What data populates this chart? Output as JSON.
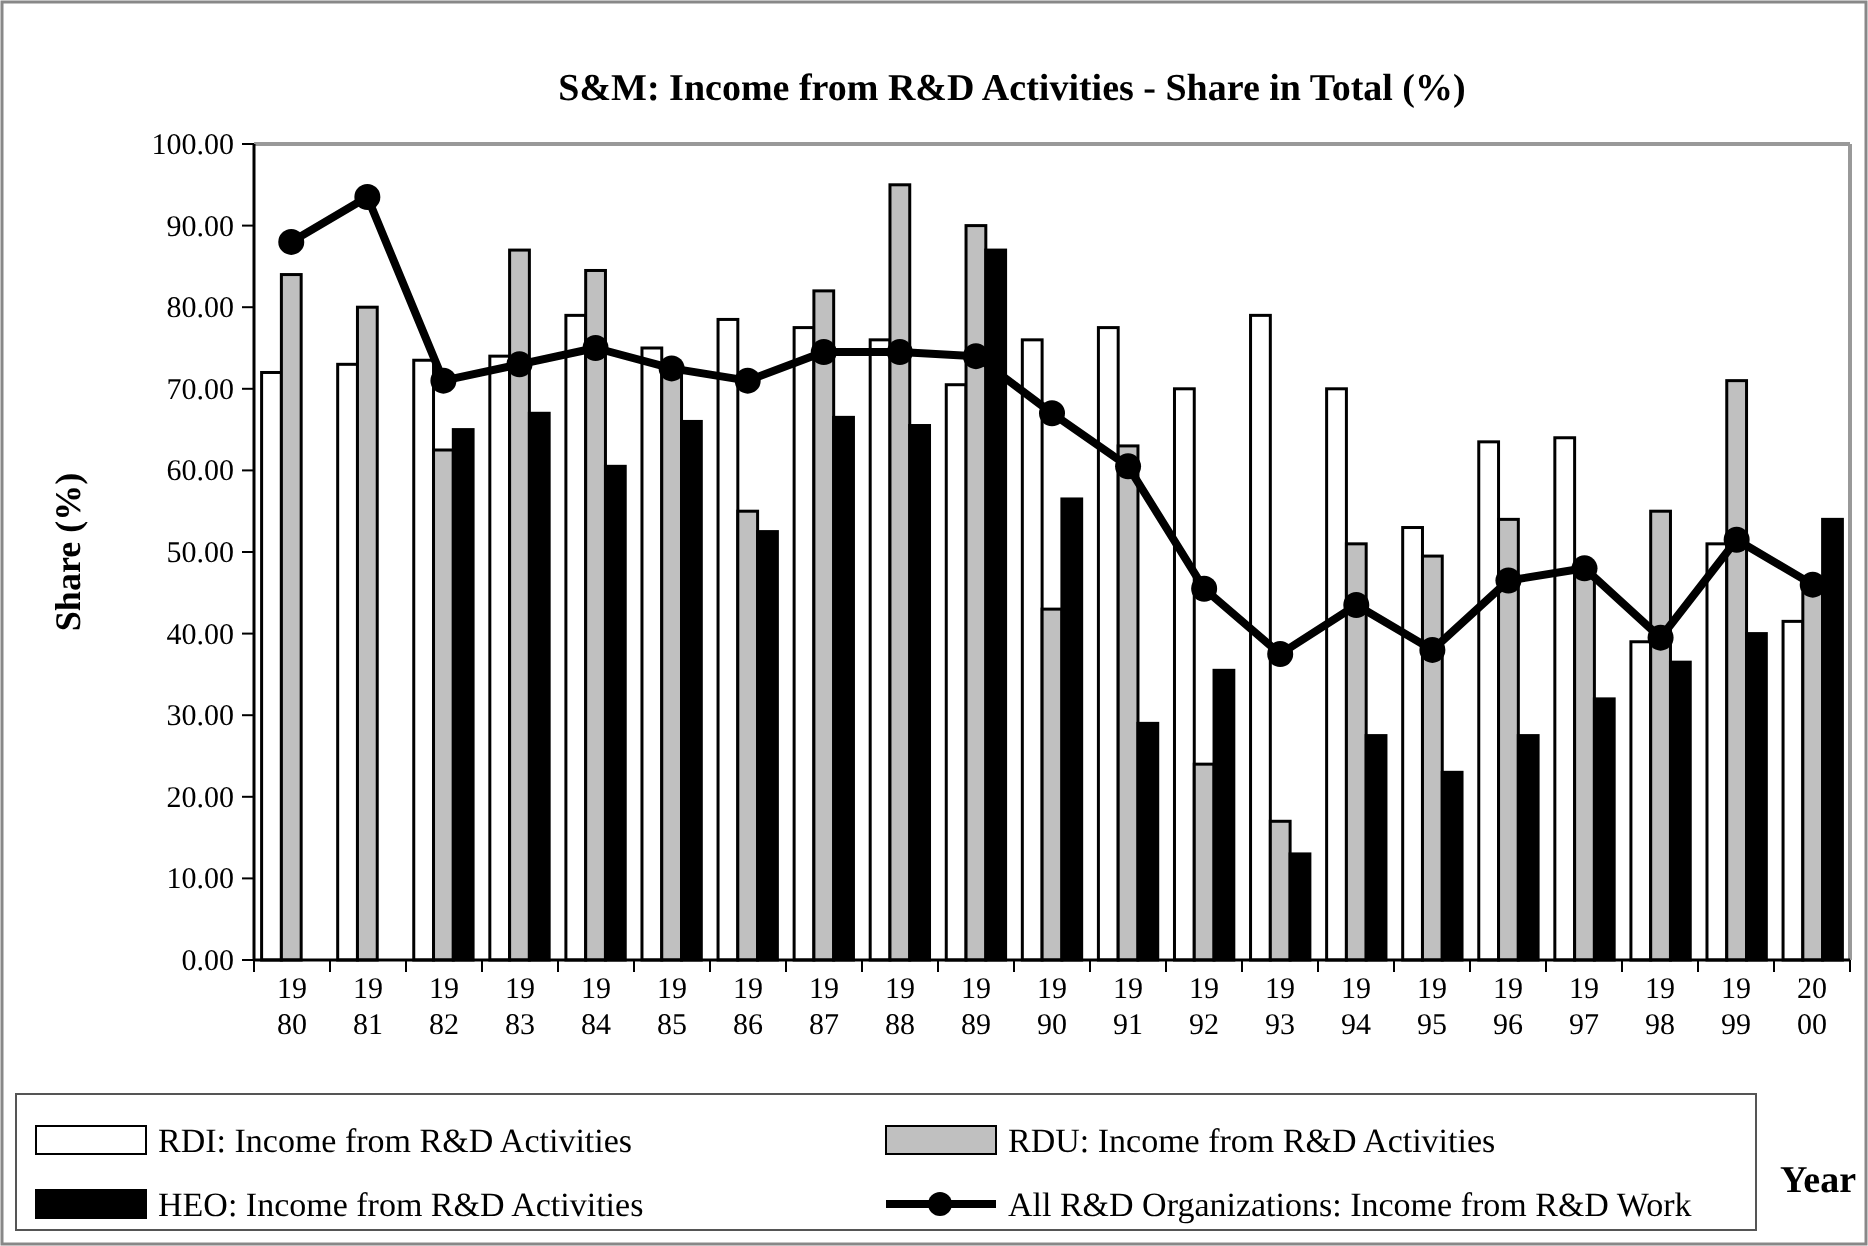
{
  "chart_data": {
    "type": "bar",
    "title": "S&M: Income from R&D Activities - Share in Total (%)",
    "xlabel": "Year",
    "ylabel": "Share (%)",
    "categories": [
      "1980",
      "1981",
      "1982",
      "1983",
      "1984",
      "1985",
      "1986",
      "1987",
      "1988",
      "1989",
      "1990",
      "1991",
      "1992",
      "1993",
      "1994",
      "1995",
      "1996",
      "1997",
      "1998",
      "1999",
      "2000"
    ],
    "series": [
      {
        "name": "RDI: Income from R&D Activities",
        "color": "#ffffff",
        "values": [
          72,
          73,
          73.5,
          74,
          79,
          75,
          78.5,
          77.5,
          76,
          70.5,
          76,
          77.5,
          70,
          79,
          70,
          53,
          63.5,
          64,
          39,
          51,
          41.5
        ]
      },
      {
        "name": "RDU: Income from R&D Activities",
        "color": "#c0c0c0",
        "values": [
          84,
          80,
          62.5,
          87,
          84.5,
          72.5,
          55,
          82,
          95,
          90,
          43,
          63,
          24,
          17,
          51,
          49.5,
          54,
          47,
          55,
          71,
          45
        ]
      },
      {
        "name": "HEO: Income from R&D Activities",
        "color": "#000000",
        "values": [
          null,
          null,
          65,
          67,
          60.5,
          66,
          52.5,
          66.5,
          65.5,
          87,
          56.5,
          29,
          35.5,
          13,
          27.5,
          23,
          27.5,
          32,
          36.5,
          40,
          54
        ]
      },
      {
        "name": "All R&D Organizations: Income from R&D Work",
        "type": "line",
        "color": "#000000",
        "marker": "circle",
        "values": [
          88,
          93.5,
          71,
          73,
          75,
          72.5,
          71,
          74.5,
          74.5,
          74,
          67,
          60.5,
          45.5,
          37.5,
          43.5,
          38,
          46.5,
          48,
          39.5,
          51.5,
          46
        ]
      }
    ],
    "ylim": [
      0,
      100
    ],
    "yticks": [
      {
        "value": 0,
        "label": "0.00"
      },
      {
        "value": 10,
        "label": "10.00"
      },
      {
        "value": 20,
        "label": "20.00"
      },
      {
        "value": 30,
        "label": "30.00"
      },
      {
        "value": 40,
        "label": "40.00"
      },
      {
        "value": 50,
        "label": "50.00"
      },
      {
        "value": 60,
        "label": "60.00"
      },
      {
        "value": 70,
        "label": "70.00"
      },
      {
        "value": 80,
        "label": "80.00"
      },
      {
        "value": 90,
        "label": "90.00"
      },
      {
        "value": 100,
        "label": "100.00"
      }
    ],
    "grid": false,
    "legend": "bottom"
  }
}
